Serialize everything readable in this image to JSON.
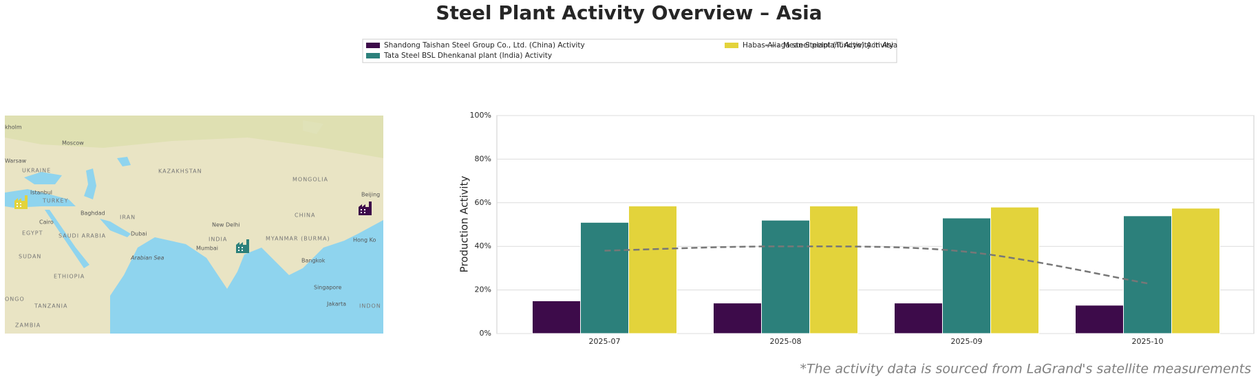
{
  "chart_data": {
    "type": "bar",
    "title": "Steel Plant Activity Overview – Asia",
    "ylabel": "Production Activity",
    "footnote": "*The activity data is sourced from LaGrand's satellite measurements",
    "categories": [
      "2025-07",
      "2025-08",
      "2025-09",
      "2025-10"
    ],
    "series": [
      {
        "name": "Shandong Taishan Steel Group Co., Ltd. (China) Activity",
        "color": "#3d0b4a",
        "kind": "bar",
        "values": [
          15,
          14,
          14,
          13
        ]
      },
      {
        "name": "Tata Steel BSL Dhenkanal plant (India) Activity",
        "color": "#2c807b",
        "kind": "bar",
        "values": [
          51,
          52,
          53,
          54
        ]
      },
      {
        "name": "Habas Aliaga steel plant (Türkiye) Activity",
        "color": "#e3d33b",
        "kind": "bar",
        "values": [
          58.5,
          58.5,
          58,
          57.5
        ]
      },
      {
        "name": "Mean Steelplant Activity in Asia",
        "color": "#777777",
        "kind": "line",
        "linestyle": "dashed",
        "values": [
          38,
          40,
          37.5,
          23
        ]
      }
    ],
    "ylim": [
      0,
      100
    ],
    "yticks": [
      {
        "value": 0,
        "label": "0%"
      },
      {
        "value": 20,
        "label": "20%"
      },
      {
        "value": 40,
        "label": "40%"
      },
      {
        "value": 60,
        "label": "60%"
      },
      {
        "value": 80,
        "label": "80%"
      },
      {
        "value": 100,
        "label": "100%"
      }
    ],
    "grid": true
  },
  "map": {
    "labels": [
      "Moscow",
      "Warsaw",
      "UKRAINE",
      "Istanbul",
      "TURKEY",
      "Baghdad",
      "IRAN",
      "Cairo",
      "EGYPT",
      "SAUDI ARABIA",
      "Dubai",
      "SUDAN",
      "ETHIOPIA",
      "TANZANIA",
      "ZAMBIA",
      "KAZAKHSTAN",
      "MONGOLIA",
      "CHINA",
      "Beijing",
      "New Delhi",
      "INDIA",
      "Mumbai",
      "Arabian Sea",
      "MYANMAR (BURMA)",
      "Bangkok",
      "Hong Ko",
      "Singapore",
      "Jakarta",
      "INDON",
      "kholm",
      "ONGO"
    ]
  }
}
